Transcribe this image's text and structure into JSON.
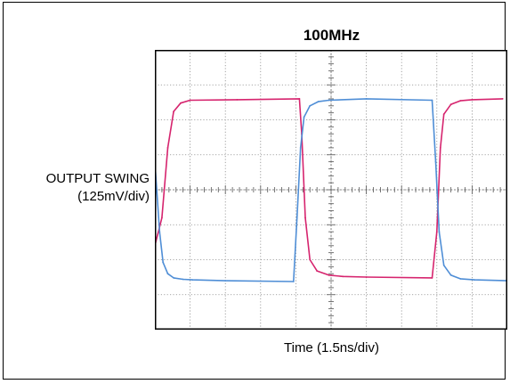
{
  "chart_data": {
    "type": "line",
    "title": "100MHz",
    "xlabel": "Time (1.5ns/div)",
    "ylabel_line1": "OUTPUT SWING",
    "ylabel_line2": "(125mV/div)",
    "divisions": {
      "x": 10,
      "y": 8
    },
    "xlim": [
      0,
      15
    ],
    "ylim": [
      -500,
      500
    ],
    "x_unit": "ns",
    "y_unit": "mV",
    "grid": true,
    "series": [
      {
        "color": "#d6246e",
        "x": [
          0.0,
          0.3,
          0.55,
          0.8,
          1.1,
          1.5,
          3.5,
          6.15,
          6.25,
          6.4,
          6.6,
          6.9,
          7.4,
          8.0,
          9.0,
          11.8,
          12.0,
          12.15,
          12.3,
          12.6,
          13.0,
          13.5,
          14.8
        ],
        "y": [
          -200,
          -100,
          150,
          280,
          310,
          320,
          322,
          325,
          200,
          -100,
          -250,
          -290,
          -305,
          -310,
          -312,
          -315,
          -150,
          150,
          270,
          305,
          318,
          322,
          325
        ]
      },
      {
        "color": "#4f8ed6",
        "x": [
          0.0,
          0.2,
          0.35,
          0.55,
          0.8,
          1.2,
          1.6,
          3.0,
          5.9,
          6.05,
          6.2,
          6.35,
          6.6,
          6.95,
          7.4,
          9.0,
          11.8,
          11.95,
          12.1,
          12.3,
          12.6,
          13.0,
          13.6,
          15.0
        ],
        "y": [
          100,
          -150,
          -260,
          -300,
          -315,
          -320,
          -322,
          -325,
          -328,
          -100,
          150,
          260,
          300,
          315,
          320,
          325,
          320,
          100,
          -150,
          -270,
          -305,
          -318,
          -322,
          -325
        ]
      }
    ]
  }
}
